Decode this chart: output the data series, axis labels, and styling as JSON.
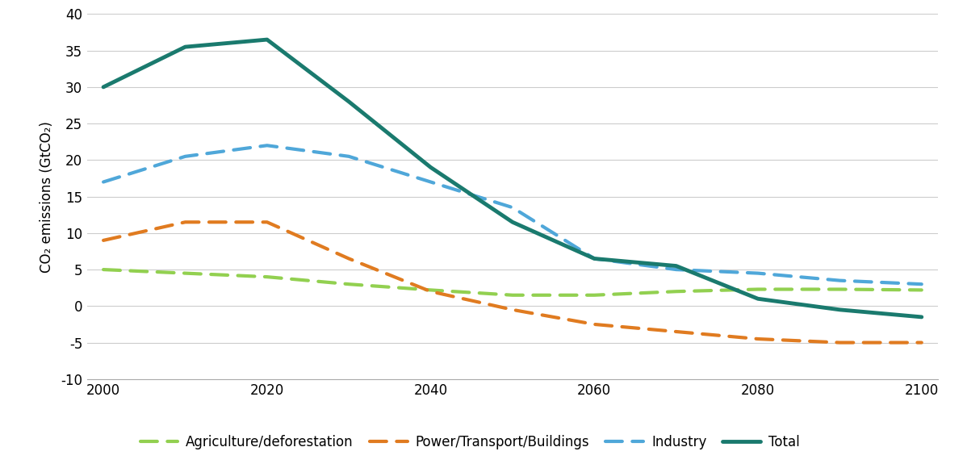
{
  "x": [
    2000,
    2010,
    2020,
    2030,
    2040,
    2050,
    2060,
    2070,
    2080,
    2090,
    2100
  ],
  "agriculture": [
    5.0,
    4.5,
    4.0,
    3.0,
    2.2,
    1.5,
    1.5,
    2.0,
    2.3,
    2.3,
    2.2
  ],
  "power_transport": [
    9.0,
    11.5,
    11.5,
    6.5,
    2.0,
    -0.5,
    -2.5,
    -3.5,
    -4.5,
    -5.0,
    -5.0
  ],
  "industry": [
    17.0,
    20.5,
    22.0,
    20.5,
    17.0,
    13.5,
    6.5,
    5.0,
    4.5,
    3.5,
    3.0
  ],
  "total": [
    30.0,
    35.5,
    36.5,
    28.0,
    19.0,
    11.5,
    6.5,
    5.5,
    1.0,
    -0.5,
    -1.5
  ],
  "agri_color": "#92d050",
  "power_color": "#e07b20",
  "industry_color": "#4fa7d9",
  "total_color": "#1a7a6e",
  "ylabel": "CO₂ emissions (GtCO₂)",
  "ylim": [
    -10,
    40
  ],
  "xlim": [
    1998,
    2102
  ],
  "yticks": [
    -10,
    -5,
    0,
    5,
    10,
    15,
    20,
    25,
    30,
    35,
    40
  ],
  "xticks": [
    2000,
    2020,
    2040,
    2060,
    2080,
    2100
  ],
  "legend_labels": [
    "Agriculture/deforestation",
    "Power/Transport/Buildings",
    "Industry",
    "Total"
  ],
  "background_color": "#ffffff",
  "grid_color": "#cccccc",
  "dash_linewidth": 3.0,
  "total_linewidth": 3.5,
  "dash_on": 5,
  "dash_off": 3
}
